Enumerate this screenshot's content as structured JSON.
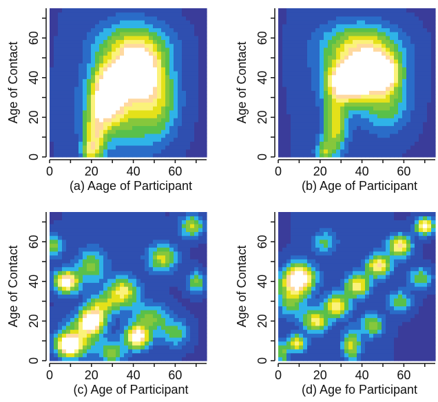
{
  "figure": {
    "colors": {
      "scale": [
        "#3a3c9a",
        "#2f4fb0",
        "#2a6cc8",
        "#2fb3e8",
        "#59c04a",
        "#86c73c",
        "#e4e11a",
        "#fbf27a",
        "#ffd9a0",
        "#ffffff"
      ],
      "axis": "#111111"
    }
  },
  "chart_data": [
    {
      "type": "heatmap",
      "caption": "(a) Aage of Participant",
      "ylabel": "Age of Contact",
      "xlim": [
        0,
        75
      ],
      "ylim": [
        0,
        75
      ],
      "xticks": [
        "0",
        "20",
        "40",
        "60"
      ],
      "xtick_values": [
        0,
        20,
        40,
        60
      ],
      "yticks": [
        "0",
        "20",
        "40",
        "60"
      ],
      "ytick_values": [
        0,
        20,
        40,
        60
      ],
      "grid": false,
      "hotspots": [
        {
          "x": 28,
          "y": 33,
          "sx": 5,
          "sy": 9,
          "w": 1.0
        },
        {
          "x": 42,
          "y": 42,
          "sx": 6,
          "sy": 8,
          "w": 1.05
        },
        {
          "x": 40,
          "y": 55,
          "sx": 12,
          "sy": 9,
          "w": 0.6
        },
        {
          "x": 22,
          "y": 12,
          "sx": 3.5,
          "sy": 9,
          "w": 0.55
        },
        {
          "x": 35,
          "y": 25,
          "sx": 13,
          "sy": 14,
          "w": 0.5
        },
        {
          "x": 52,
          "y": 30,
          "sx": 7,
          "sy": 14,
          "w": 0.4
        },
        {
          "x": 19,
          "y": 3,
          "sx": 3,
          "sy": 4,
          "w": 0.4
        }
      ]
    },
    {
      "type": "heatmap",
      "caption": "(b) Age of Participant",
      "ylabel": "Age of Contact",
      "xlim": [
        0,
        75
      ],
      "ylim": [
        0,
        75
      ],
      "xticks": [
        "0",
        "20",
        "40",
        "60"
      ],
      "xtick_values": [
        0,
        20,
        40,
        60
      ],
      "yticks": [
        "0",
        "20",
        "40",
        "60"
      ],
      "ytick_values": [
        0,
        20,
        40,
        60
      ],
      "grid": false,
      "hotspots": [
        {
          "x": 33,
          "y": 38,
          "sx": 6,
          "sy": 6,
          "w": 1.0
        },
        {
          "x": 48,
          "y": 43,
          "sx": 6,
          "sy": 6,
          "w": 1.0
        },
        {
          "x": 40,
          "y": 40,
          "sx": 12,
          "sy": 10,
          "w": 0.55
        },
        {
          "x": 40,
          "y": 56,
          "sx": 13,
          "sy": 8,
          "w": 0.6
        },
        {
          "x": 27,
          "y": 16,
          "sx": 4,
          "sy": 10,
          "w": 0.6
        },
        {
          "x": 52,
          "y": 26,
          "sx": 8,
          "sy": 10,
          "w": 0.35
        },
        {
          "x": 22,
          "y": 3,
          "sx": 3,
          "sy": 4,
          "w": 0.4
        }
      ]
    },
    {
      "type": "heatmap",
      "caption": "(c) Age of Participant",
      "ylabel": "Age of Contact",
      "xlim": [
        0,
        75
      ],
      "ylim": [
        0,
        75
      ],
      "xticks": [
        "0",
        "20",
        "40",
        "60"
      ],
      "xtick_values": [
        0,
        20,
        40,
        60
      ],
      "yticks": [
        "0",
        "20",
        "40",
        "60"
      ],
      "ytick_values": [
        0,
        20,
        40,
        60
      ],
      "grid": false,
      "hotspots": [
        {
          "x": 9,
          "y": 8,
          "sx": 4,
          "sy": 4,
          "w": 1.0
        },
        {
          "x": 20,
          "y": 20,
          "sx": 4,
          "sy": 4,
          "w": 1.0
        },
        {
          "x": 42,
          "y": 12,
          "sx": 4,
          "sy": 4,
          "w": 1.0
        },
        {
          "x": 8,
          "y": 40,
          "sx": 4,
          "sy": 4,
          "w": 1.0
        },
        {
          "x": 15,
          "y": 12,
          "sx": 7,
          "sy": 7,
          "w": 0.45
        },
        {
          "x": 35,
          "y": 35,
          "sx": 5,
          "sy": 5,
          "w": 0.7
        },
        {
          "x": 54,
          "y": 52,
          "sx": 5,
          "sy": 5,
          "w": 0.6
        },
        {
          "x": 68,
          "y": 68,
          "sx": 4,
          "sy": 4,
          "w": 0.6
        },
        {
          "x": 70,
          "y": 40,
          "sx": 3,
          "sy": 4,
          "w": 0.5
        },
        {
          "x": 20,
          "y": 48,
          "sx": 5,
          "sy": 6,
          "w": 0.45
        },
        {
          "x": 2,
          "y": 58,
          "sx": 3,
          "sy": 4,
          "w": 0.5
        },
        {
          "x": 30,
          "y": 4,
          "sx": 4,
          "sy": 4,
          "w": 0.45
        },
        {
          "x": 48,
          "y": 22,
          "sx": 6,
          "sy": 5,
          "w": 0.45
        },
        {
          "x": 25,
          "y": 28,
          "sx": 5,
          "sy": 4,
          "w": 0.5
        },
        {
          "x": 60,
          "y": 14,
          "sx": 5,
          "sy": 5,
          "w": 0.4
        }
      ]
    },
    {
      "type": "heatmap",
      "caption": "(d) Age fo Participant",
      "ylabel": "Age of Contact",
      "xlim": [
        0,
        75
      ],
      "ylim": [
        0,
        75
      ],
      "xticks": [
        "0",
        "20",
        "40",
        "60"
      ],
      "xtick_values": [
        0,
        20,
        40,
        60
      ],
      "yticks": [
        "0",
        "20",
        "40",
        "60"
      ],
      "ytick_values": [
        0,
        20,
        40,
        60
      ],
      "grid": false,
      "hotspots": [
        {
          "x": 10,
          "y": 42,
          "sx": 5,
          "sy": 5,
          "w": 1.05
        },
        {
          "x": 6,
          "y": 32,
          "sx": 5,
          "sy": 7,
          "w": 0.5
        },
        {
          "x": 9,
          "y": 9,
          "sx": 3,
          "sy": 3,
          "w": 0.7
        },
        {
          "x": 18,
          "y": 20,
          "sx": 4,
          "sy": 4,
          "w": 0.7
        },
        {
          "x": 28,
          "y": 28,
          "sx": 4,
          "sy": 4,
          "w": 0.75
        },
        {
          "x": 38,
          "y": 38,
          "sx": 4,
          "sy": 4,
          "w": 0.75
        },
        {
          "x": 48,
          "y": 48,
          "sx": 4,
          "sy": 4,
          "w": 0.8
        },
        {
          "x": 58,
          "y": 58,
          "sx": 4,
          "sy": 4,
          "w": 0.8
        },
        {
          "x": 70,
          "y": 68,
          "sx": 3,
          "sy": 3,
          "w": 0.95
        },
        {
          "x": 35,
          "y": 8,
          "sx": 3,
          "sy": 5,
          "w": 0.6
        },
        {
          "x": 45,
          "y": 18,
          "sx": 4,
          "sy": 4,
          "w": 0.5
        },
        {
          "x": 58,
          "y": 30,
          "sx": 4,
          "sy": 4,
          "w": 0.45
        },
        {
          "x": 68,
          "y": 42,
          "sx": 4,
          "sy": 4,
          "w": 0.45
        },
        {
          "x": 22,
          "y": 60,
          "sx": 4,
          "sy": 4,
          "w": 0.35
        },
        {
          "x": 2,
          "y": 4,
          "sx": 2,
          "sy": 4,
          "w": 0.5
        }
      ]
    }
  ]
}
